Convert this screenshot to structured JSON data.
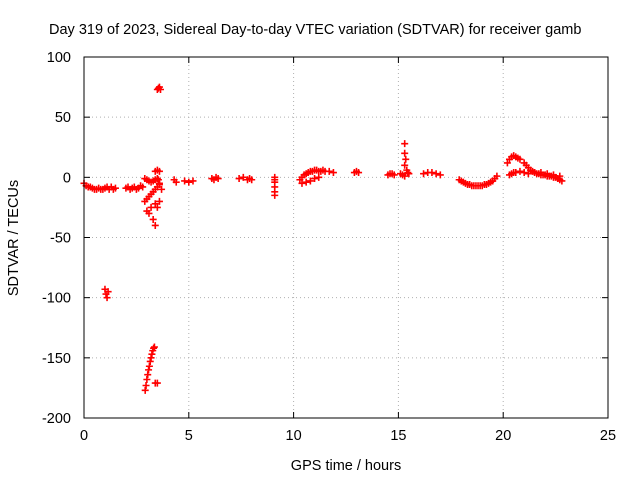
{
  "chart_data": {
    "type": "scatter",
    "title": "Day 319 of 2023, Sidereal Day-to-day VTEC variation (SDTVAR) for receiver gamb",
    "xlabel": "GPS time / hours",
    "ylabel": "SDTVAR / TECUs",
    "xlim": [
      0,
      25
    ],
    "ylim": [
      -200,
      100
    ],
    "xticks": [
      0,
      5,
      10,
      15,
      20,
      25
    ],
    "yticks": [
      -200,
      -150,
      -100,
      -50,
      0,
      50,
      100
    ],
    "xtick_labels": [
      "0",
      "5",
      "10",
      "15",
      "20",
      "25"
    ],
    "ytick_labels": [
      "-200",
      "-150",
      "-100",
      "-50",
      "0",
      "50",
      "100"
    ],
    "grid": true,
    "marker": "+",
    "color": "#ff0000",
    "series": [
      {
        "name": "SDTVAR",
        "x": [
          0.0,
          0.1,
          0.2,
          0.3,
          0.4,
          0.5,
          0.6,
          0.7,
          0.8,
          0.9,
          1.0,
          1.1,
          1.2,
          1.3,
          1.4,
          1.5,
          1.0,
          1.05,
          1.1,
          1.15,
          2.0,
          2.1,
          2.2,
          2.3,
          2.4,
          2.5,
          2.6,
          2.7,
          2.8,
          2.9,
          3.0,
          3.1,
          3.2,
          3.3,
          3.4,
          3.5,
          2.9,
          3.0,
          3.1,
          3.2,
          3.3,
          3.4,
          3.5,
          3.6,
          3.0,
          3.2,
          3.4,
          3.6,
          3.1,
          3.3,
          3.4,
          3.5,
          2.92,
          2.96,
          3.0,
          3.04,
          3.08,
          3.12,
          3.16,
          3.2,
          3.24,
          3.28,
          3.32,
          3.36,
          3.4,
          3.5,
          3.5,
          3.55,
          3.6,
          3.65,
          3.6,
          3.4,
          3.5,
          3.55,
          3.6,
          3.7,
          4.3,
          4.4,
          4.8,
          5.0,
          5.2,
          6.1,
          6.2,
          6.3,
          6.4,
          7.4,
          7.6,
          7.8,
          7.9,
          8.0,
          9.1,
          9.1,
          9.1,
          9.1,
          9.1,
          9.1,
          10.3,
          10.4,
          10.5,
          10.6,
          10.7,
          10.8,
          10.9,
          11.0,
          11.1,
          11.2,
          11.3,
          11.4,
          11.5,
          11.7,
          11.9,
          10.4,
          10.6,
          10.8,
          11.0,
          11.2,
          12.9,
          13.0,
          13.1,
          14.5,
          14.6,
          14.7,
          14.8,
          15.1,
          15.2,
          15.3,
          15.3,
          15.3,
          15.3,
          15.35,
          15.4,
          15.45,
          15.5,
          16.2,
          16.4,
          16.6,
          16.8,
          17.0,
          17.9,
          18.0,
          18.1,
          18.2,
          18.3,
          18.4,
          18.5,
          18.6,
          18.7,
          18.8,
          18.9,
          19.0,
          19.1,
          19.2,
          19.3,
          19.4,
          19.5,
          19.6,
          19.7,
          20.2,
          20.3,
          20.4,
          20.5,
          20.6,
          20.7,
          20.8,
          20.3,
          20.4,
          20.5,
          20.6,
          20.8,
          21.0,
          21.0,
          21.1,
          21.2,
          21.3,
          21.4,
          21.5,
          21.6,
          21.7,
          21.8,
          21.9,
          22.0,
          22.1,
          22.2,
          22.3,
          22.4,
          22.5,
          22.6,
          22.7,
          22.8,
          21.2,
          21.5,
          21.8,
          22.1,
          22.4,
          22.7
        ],
        "y": [
          -5,
          -7,
          -8,
          -8,
          -9,
          -10,
          -10,
          -9,
          -10,
          -10,
          -9,
          -8,
          -10,
          -8,
          -10,
          -9,
          -93,
          -97,
          -100,
          -95,
          -9,
          -8,
          -10,
          -9,
          -8,
          -10,
          -9,
          -7,
          -8,
          -1,
          -2,
          -3,
          -4,
          -3,
          -2,
          -1,
          -20,
          -18,
          -16,
          -14,
          -12,
          -10,
          -8,
          -6,
          -28,
          -25,
          -22,
          -20,
          -30,
          -35,
          -40,
          -25,
          -177,
          -173,
          -168,
          -164,
          -160,
          -157,
          -153,
          -150,
          -147,
          -144,
          -142,
          -141,
          -171,
          -171,
          73,
          74,
          75,
          73,
          5,
          5,
          6,
          -2,
          -5,
          -10,
          -2,
          -4,
          -3,
          -4,
          -3,
          -1,
          -2,
          0,
          -1,
          -1,
          0,
          -2,
          -1,
          -2,
          -15,
          -12,
          -8,
          -4,
          -2,
          0,
          -2,
          0,
          2,
          3,
          4,
          5,
          5,
          6,
          6,
          5,
          5,
          6,
          5,
          5,
          4,
          -5,
          -4,
          -3,
          -1,
          0,
          4,
          5,
          4,
          2,
          3,
          3,
          2,
          3,
          2,
          1,
          10,
          20,
          28,
          15,
          6,
          4,
          3,
          3,
          4,
          4,
          3,
          2,
          -2,
          -3,
          -4,
          -5,
          -6,
          -6,
          -7,
          -7,
          -7,
          -7,
          -7,
          -7,
          -6,
          -6,
          -5,
          -4,
          -3,
          -1,
          1,
          12,
          15,
          17,
          18,
          17,
          16,
          15,
          2,
          3,
          4,
          4,
          5,
          4,
          12,
          10,
          8,
          6,
          5,
          4,
          3,
          3,
          2,
          2,
          2,
          1,
          1,
          1,
          0,
          0,
          -1,
          -2,
          -3,
          3,
          4,
          4,
          3,
          2,
          1
        ]
      }
    ]
  }
}
